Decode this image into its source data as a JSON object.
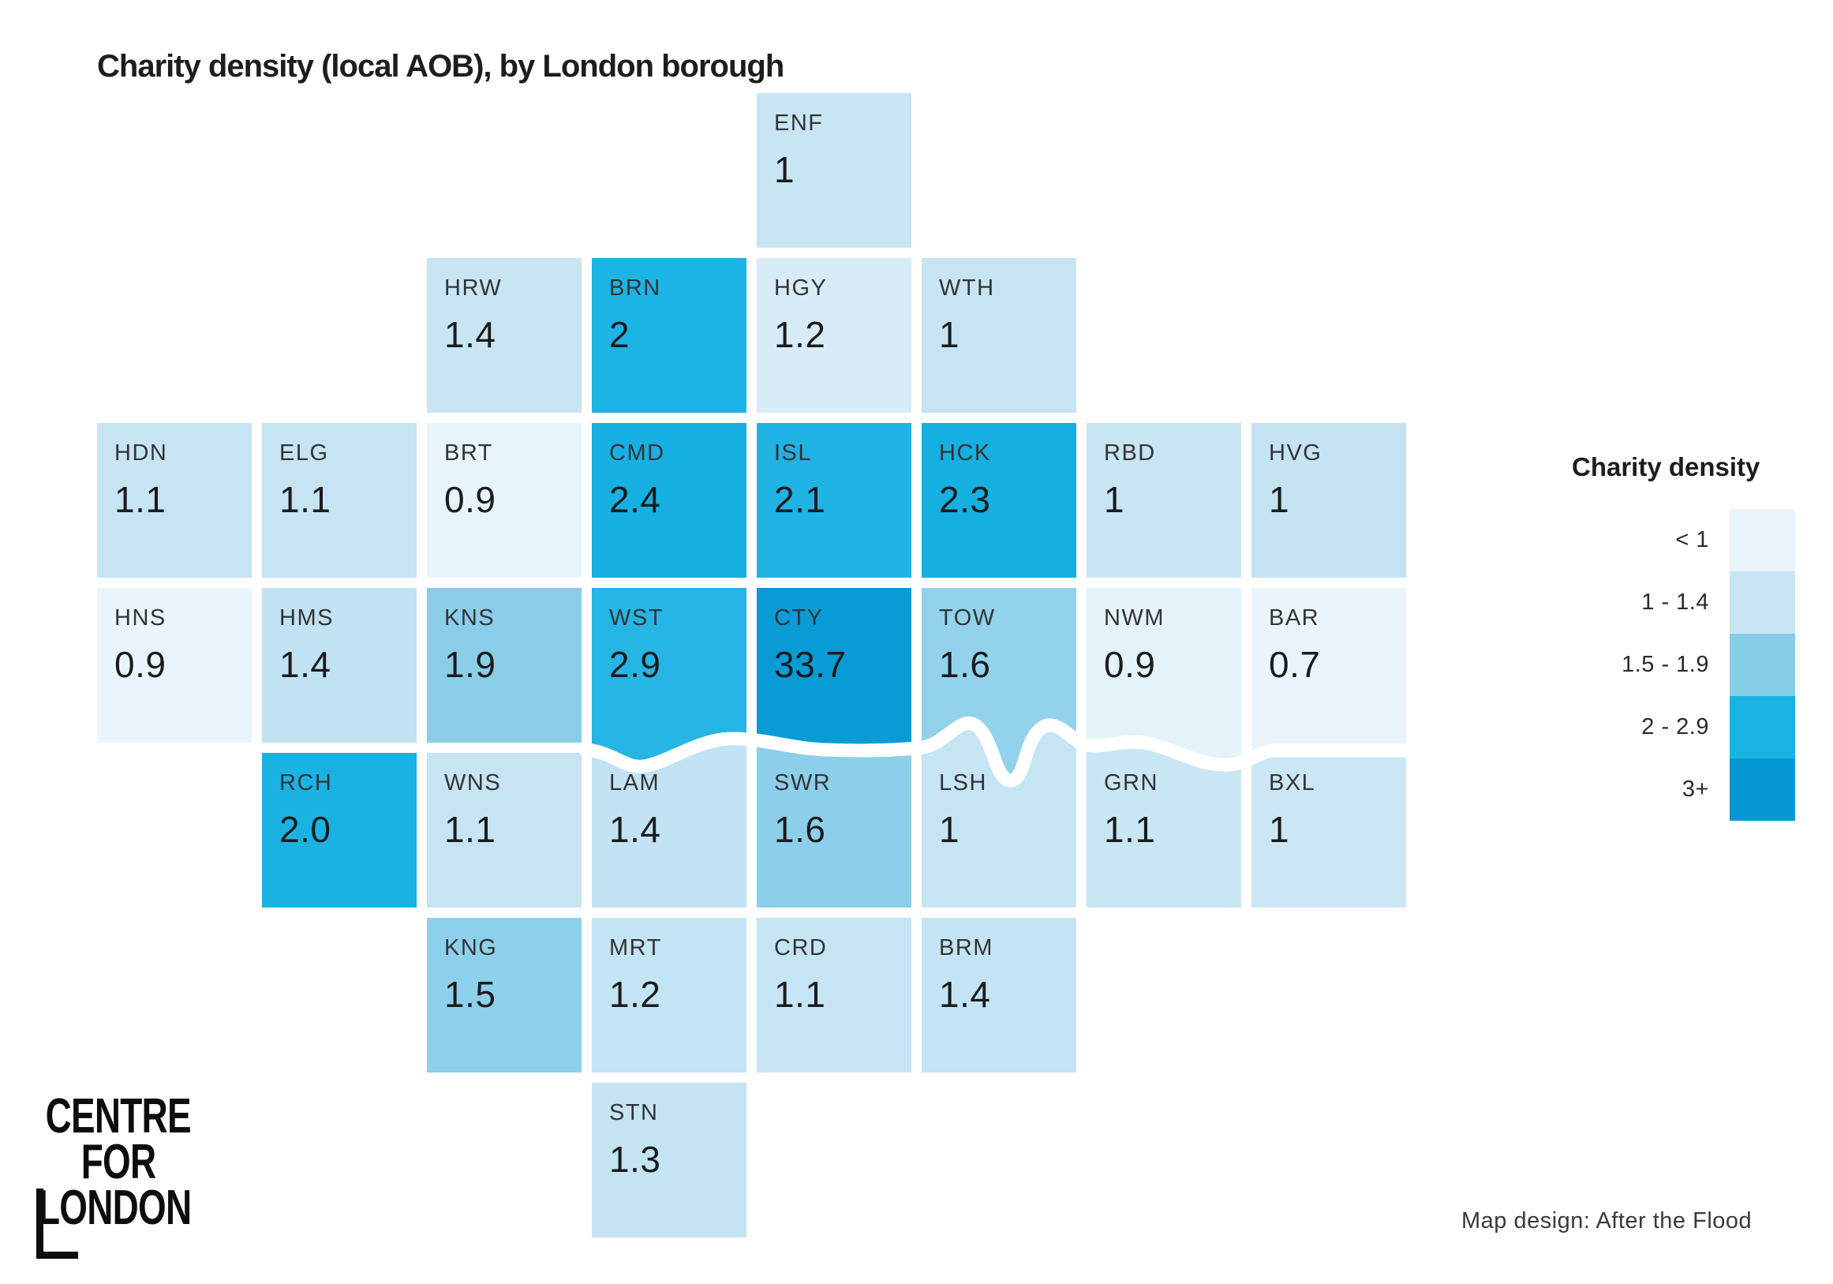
{
  "title": "Charity density (local AOB), by London borough",
  "legend": {
    "title": "Charity density",
    "buckets": [
      {
        "label": "< 1",
        "color": "#e9f3fa"
      },
      {
        "label": "1 - 1.4",
        "color": "#c8e5f4"
      },
      {
        "label": "1.5 - 1.9",
        "color": "#85cde9"
      },
      {
        "label": "2 - 2.9",
        "color": "#1bb3e4"
      },
      {
        "label": "3+",
        "color": "#0398d4"
      }
    ]
  },
  "chart_data": {
    "type": "heatmap",
    "subtype": "tile-cartogram",
    "title": "Charity density (local AOB), by London borough",
    "legend_title": "Charity density",
    "bands": [
      "< 1",
      "1 - 1.4",
      "1.5 - 1.9",
      "2 - 2.9",
      "3+"
    ],
    "river": "River Thames (white wavy divider between north and south tiles)",
    "tiles": [
      {
        "code": "ENF",
        "value": "1",
        "row": 0,
        "col": 4,
        "band": "1 - 1.4",
        "color": "#c8e5f4"
      },
      {
        "code": "HRW",
        "value": "1.4",
        "row": 1,
        "col": 2,
        "band": "1 - 1.4",
        "color": "#c8e5f4"
      },
      {
        "code": "BRN",
        "value": "2",
        "row": 1,
        "col": 3,
        "band": "2 - 2.9",
        "color": "#1cb4e4"
      },
      {
        "code": "HGY",
        "value": "1.2",
        "row": 1,
        "col": 4,
        "band": "1 - 1.4",
        "color": "#d7ecf8"
      },
      {
        "code": "WTH",
        "value": "1",
        "row": 1,
        "col": 5,
        "band": "1 - 1.4",
        "color": "#c6e4f4"
      },
      {
        "code": "HDN",
        "value": "1.1",
        "row": 2,
        "col": 0,
        "band": "1 - 1.4",
        "color": "#c6e4f4"
      },
      {
        "code": "ELG",
        "value": "1.1",
        "row": 2,
        "col": 1,
        "band": "1 - 1.4",
        "color": "#c6e4f4"
      },
      {
        "code": "BRT",
        "value": "0.9",
        "row": 2,
        "col": 2,
        "band": "< 1",
        "color": "#e8f4fb"
      },
      {
        "code": "CMD",
        "value": "2.4",
        "row": 2,
        "col": 3,
        "band": "2 - 2.9",
        "color": "#17b0e2"
      },
      {
        "code": "ISL",
        "value": "2.1",
        "row": 2,
        "col": 4,
        "band": "2 - 2.9",
        "color": "#1fb3e3"
      },
      {
        "code": "HCK",
        "value": "2.3",
        "row": 2,
        "col": 5,
        "band": "2 - 2.9",
        "color": "#15afe1"
      },
      {
        "code": "RBD",
        "value": "1",
        "row": 2,
        "col": 6,
        "band": "1 - 1.4",
        "color": "#c8e5f4"
      },
      {
        "code": "HVG",
        "value": "1",
        "row": 2,
        "col": 7,
        "band": "1 - 1.4",
        "color": "#c4e3f3"
      },
      {
        "code": "HNS",
        "value": "0.9",
        "row": 3,
        "col": 0,
        "band": "< 1",
        "color": "#eaf5fb"
      },
      {
        "code": "HMS",
        "value": "1.4",
        "row": 3,
        "col": 1,
        "band": "1 - 1.4",
        "color": "#c1e2f2"
      },
      {
        "code": "KNS",
        "value": "1.9",
        "row": 3,
        "col": 2,
        "band": "1.5 - 1.9",
        "color": "#8acde9"
      },
      {
        "code": "WST",
        "value": "2.9",
        "row": 3,
        "col": 3,
        "band": "2 - 2.9",
        "color": "#26b5e4"
      },
      {
        "code": "CTY",
        "value": "33.7",
        "row": 3,
        "col": 4,
        "band": "3+",
        "color": "#089bd6"
      },
      {
        "code": "TOW",
        "value": "1.6",
        "row": 3,
        "col": 5,
        "band": "1.5 - 1.9",
        "color": "#92d2ec"
      },
      {
        "code": "NWM",
        "value": "0.9",
        "row": 3,
        "col": 6,
        "band": "< 1",
        "color": "#e4f2f9"
      },
      {
        "code": "BAR",
        "value": "0.7",
        "row": 3,
        "col": 7,
        "band": "< 1",
        "color": "#eaf5fb"
      },
      {
        "code": "RCH",
        "value": "2.0",
        "row": 4,
        "col": 1,
        "band": "2 - 2.9",
        "color": "#19b2e3"
      },
      {
        "code": "WNS",
        "value": "1.1",
        "row": 4,
        "col": 2,
        "band": "1 - 1.4",
        "color": "#c6e4f4"
      },
      {
        "code": "LAM",
        "value": "1.4",
        "row": 4,
        "col": 3,
        "band": "1 - 1.4",
        "color": "#c2e3f3"
      },
      {
        "code": "SWR",
        "value": "1.6",
        "row": 4,
        "col": 4,
        "band": "1.5 - 1.9",
        "color": "#8ccfea"
      },
      {
        "code": "LSH",
        "value": "1",
        "row": 4,
        "col": 5,
        "band": "1 - 1.4",
        "color": "#c5e4f4"
      },
      {
        "code": "GRN",
        "value": "1.1",
        "row": 4,
        "col": 6,
        "band": "1 - 1.4",
        "color": "#c9e6f5"
      },
      {
        "code": "BXL",
        "value": "1",
        "row": 4,
        "col": 7,
        "band": "1 - 1.4",
        "color": "#cbe7f5"
      },
      {
        "code": "KNG",
        "value": "1.5",
        "row": 5,
        "col": 2,
        "band": "1.5 - 1.9",
        "color": "#8dd0eb"
      },
      {
        "code": "MRT",
        "value": "1.2",
        "row": 5,
        "col": 3,
        "band": "1 - 1.4",
        "color": "#c3e4f4"
      },
      {
        "code": "CRD",
        "value": "1.1",
        "row": 5,
        "col": 4,
        "band": "1 - 1.4",
        "color": "#c6e5f4"
      },
      {
        "code": "BRM",
        "value": "1.4",
        "row": 5,
        "col": 5,
        "band": "1 - 1.4",
        "color": "#c3e4f4"
      },
      {
        "code": "STN",
        "value": "1.3",
        "row": 6,
        "col": 3,
        "band": "1 - 1.4",
        "color": "#c4e4f4"
      }
    ]
  },
  "logo": {
    "line1": "CENTRE",
    "line2": "FOR",
    "line3": "LONDON"
  },
  "credit": "Map design: After the Flood"
}
